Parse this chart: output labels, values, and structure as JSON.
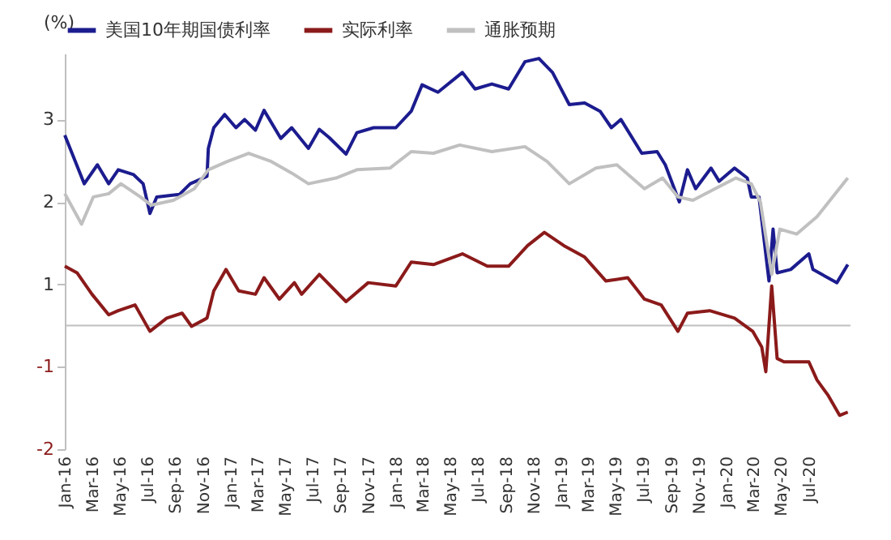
{
  "chart_data": {
    "type": "line",
    "ylabel": "(%)",
    "xlim": [
      "2016-01-01",
      "2020-10-01"
    ],
    "xticks": [
      {
        "value": "2016-01-01",
        "label": "Jan-16"
      },
      {
        "value": "2016-03-01",
        "label": "Mar-16"
      },
      {
        "value": "2016-05-01",
        "label": "May-16"
      },
      {
        "value": "2016-07-01",
        "label": "Jul-16"
      },
      {
        "value": "2016-09-01",
        "label": "Sep-16"
      },
      {
        "value": "2016-11-01",
        "label": "Nov-16"
      },
      {
        "value": "2017-01-01",
        "label": "Jan-17"
      },
      {
        "value": "2017-03-01",
        "label": "Mar-17"
      },
      {
        "value": "2017-05-01",
        "label": "May-17"
      },
      {
        "value": "2017-07-01",
        "label": "Jul-17"
      },
      {
        "value": "2017-09-01",
        "label": "Sep-17"
      },
      {
        "value": "2017-11-01",
        "label": "Nov-17"
      },
      {
        "value": "2018-01-01",
        "label": "Jan-18"
      },
      {
        "value": "2018-03-01",
        "label": "Mar-18"
      },
      {
        "value": "2018-05-01",
        "label": "May-18"
      },
      {
        "value": "2018-07-01",
        "label": "Jul-18"
      },
      {
        "value": "2018-09-01",
        "label": "Sep-18"
      },
      {
        "value": "2018-11-01",
        "label": "Nov-18"
      },
      {
        "value": "2019-01-01",
        "label": "Jan-19"
      },
      {
        "value": "2019-03-01",
        "label": "Mar-19"
      },
      {
        "value": "2019-05-01",
        "label": "May-19"
      },
      {
        "value": "2019-07-01",
        "label": "Jul-19"
      },
      {
        "value": "2019-09-01",
        "label": "Sep-19"
      },
      {
        "value": "2019-11-01",
        "label": "Nov-19"
      },
      {
        "value": "2020-01-01",
        "label": "Jan-20"
      },
      {
        "value": "2020-03-01",
        "label": "Mar-20"
      },
      {
        "value": "2020-05-01",
        "label": "May-20"
      },
      {
        "value": "2020-07-01",
        "label": "Jul-20"
      }
    ],
    "ylim": [
      -1,
      3.8
    ],
    "yticks": [
      1,
      2,
      3
    ],
    "y2lim": [
      -2,
      2.8
    ],
    "y2ticks": [
      -2,
      -1
    ],
    "grid": false,
    "legend": "top",
    "marker": "none",
    "line_style": "solid",
    "ref_lines": [
      {
        "axis": "y",
        "value": 0.5,
        "color": "#bfbfbf"
      }
    ],
    "series": [
      {
        "name": "美国10年期国债利率",
        "color": "#1c1c8f",
        "x": [
          "2016-01-01",
          "2016-02-13",
          "2016-03-13",
          "2016-04-07",
          "2016-04-28",
          "2016-06-01",
          "2016-06-22",
          "2016-07-07",
          "2016-07-22",
          "2016-09-10",
          "2016-10-04",
          "2016-11-10",
          "2016-11-13",
          "2016-11-25",
          "2016-12-19",
          "2017-01-13",
          "2017-02-01",
          "2017-02-25",
          "2017-03-16",
          "2017-04-22",
          "2017-05-16",
          "2017-06-22",
          "2017-07-16",
          "2017-08-07",
          "2017-09-13",
          "2017-10-07",
          "2017-11-13",
          "2018-01-01",
          "2018-02-04",
          "2018-02-28",
          "2018-04-04",
          "2018-05-28",
          "2018-06-25",
          "2018-08-01",
          "2018-09-07",
          "2018-10-13",
          "2018-11-13",
          "2018-12-13",
          "2019-01-19",
          "2019-02-22",
          "2019-03-28",
          "2019-04-22",
          "2019-05-13",
          "2019-06-28",
          "2019-08-01",
          "2019-08-19",
          "2019-09-19",
          "2019-10-07",
          "2019-10-25",
          "2019-11-28",
          "2019-12-16",
          "2020-01-19",
          "2020-02-16",
          "2020-02-25",
          "2020-03-13",
          "2020-04-04",
          "2020-04-13",
          "2020-04-22",
          "2020-05-22",
          "2020-07-01",
          "2020-07-10",
          "2020-09-01",
          "2020-09-25"
        ],
        "values": [
          2.81,
          2.22,
          2.45,
          2.22,
          2.39,
          2.33,
          2.22,
          1.86,
          2.06,
          2.09,
          2.22,
          2.31,
          2.65,
          2.9,
          3.06,
          2.9,
          3.0,
          2.87,
          3.11,
          2.77,
          2.9,
          2.65,
          2.88,
          2.78,
          2.58,
          2.84,
          2.9,
          2.9,
          3.1,
          3.42,
          3.33,
          3.57,
          3.37,
          3.43,
          3.37,
          3.7,
          3.74,
          3.57,
          3.18,
          3.2,
          3.1,
          2.9,
          3.0,
          2.59,
          2.61,
          2.45,
          2.0,
          2.39,
          2.16,
          2.41,
          2.25,
          2.41,
          2.29,
          2.06,
          2.06,
          1.04,
          1.67,
          1.14,
          1.18,
          1.37,
          1.18,
          1.02,
          1.24
        ]
      },
      {
        "name": "实际利率",
        "color": "#8b1a1a",
        "axis": "y2",
        "x": [
          "2016-01-01",
          "2016-01-28",
          "2016-03-01",
          "2016-04-07",
          "2016-04-28",
          "2016-06-04",
          "2016-07-07",
          "2016-08-13",
          "2016-09-16",
          "2016-10-07",
          "2016-11-10",
          "2016-11-25",
          "2016-12-22",
          "2017-01-19",
          "2017-02-25",
          "2017-03-16",
          "2017-04-19",
          "2017-05-22",
          "2017-06-07",
          "2017-07-16",
          "2017-09-13",
          "2017-11-01",
          "2018-01-01",
          "2018-02-04",
          "2018-03-25",
          "2018-05-28",
          "2018-07-22",
          "2018-09-07",
          "2018-10-19",
          "2018-11-25",
          "2019-01-07",
          "2019-02-22",
          "2019-04-10",
          "2019-05-28",
          "2019-07-04",
          "2019-08-10",
          "2019-09-16",
          "2019-10-07",
          "2019-11-25",
          "2020-01-19",
          "2020-02-28",
          "2020-03-19",
          "2020-03-28",
          "2020-04-10",
          "2020-04-22",
          "2020-05-07",
          "2020-07-01",
          "2020-07-19",
          "2020-08-13",
          "2020-09-07",
          "2020-09-25"
        ],
        "values": [
          0.22,
          0.14,
          -0.12,
          -0.37,
          -0.32,
          -0.25,
          -0.57,
          -0.41,
          -0.35,
          -0.51,
          -0.41,
          -0.08,
          0.18,
          -0.08,
          -0.12,
          0.08,
          -0.18,
          0.02,
          -0.12,
          0.12,
          -0.21,
          0.02,
          -0.02,
          0.27,
          0.24,
          0.37,
          0.22,
          0.22,
          0.47,
          0.63,
          0.47,
          0.33,
          0.04,
          0.08,
          -0.18,
          -0.25,
          -0.57,
          -0.35,
          -0.32,
          -0.41,
          -0.57,
          -0.76,
          -1.06,
          -0.02,
          -0.9,
          -0.94,
          -0.94,
          -1.16,
          -1.35,
          -1.59,
          -1.55
        ]
      },
      {
        "name": "通胀预期",
        "color": "#c0c0c0",
        "x": [
          "2016-01-01",
          "2016-02-07",
          "2016-03-04",
          "2016-04-07",
          "2016-05-04",
          "2016-06-16",
          "2016-07-10",
          "2016-08-28",
          "2016-10-13",
          "2016-11-13",
          "2016-12-25",
          "2017-02-10",
          "2017-04-01",
          "2017-05-16",
          "2017-06-22",
          "2017-08-22",
          "2017-10-07",
          "2017-12-19",
          "2018-02-04",
          "2018-03-25",
          "2018-05-22",
          "2018-08-01",
          "2018-10-13",
          "2018-12-01",
          "2019-01-19",
          "2019-03-19",
          "2019-05-04",
          "2019-07-04",
          "2019-08-13",
          "2019-09-16",
          "2019-10-19",
          "2019-12-07",
          "2020-01-22",
          "2020-02-25",
          "2020-03-16",
          "2020-04-10",
          "2020-04-28",
          "2020-06-04",
          "2020-07-19",
          "2020-09-25"
        ],
        "values": [
          2.1,
          1.73,
          2.06,
          2.1,
          2.22,
          2.06,
          1.96,
          2.02,
          2.16,
          2.39,
          2.49,
          2.59,
          2.49,
          2.35,
          2.22,
          2.29,
          2.39,
          2.41,
          2.61,
          2.59,
          2.69,
          2.61,
          2.67,
          2.49,
          2.22,
          2.41,
          2.45,
          2.16,
          2.29,
          2.06,
          2.02,
          2.16,
          2.29,
          2.22,
          2.0,
          1.12,
          1.67,
          1.61,
          1.82,
          2.29
        ]
      }
    ]
  }
}
